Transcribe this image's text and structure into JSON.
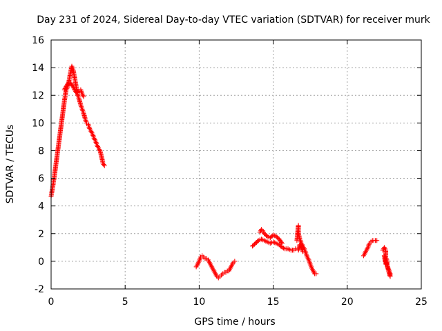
{
  "chart_data": {
    "type": "scatter",
    "title": "Day 231 of 2024, Sidereal Day-to-day VTEC variation (SDTVAR) for receiver murk",
    "xlabel": "GPS time / hours",
    "ylabel": "SDTVAR / TECUs",
    "xlim": [
      0,
      25
    ],
    "ylim": [
      -2,
      16
    ],
    "xticks": [
      0,
      5,
      10,
      15,
      20,
      25
    ],
    "yticks": [
      -2,
      0,
      2,
      4,
      6,
      8,
      10,
      12,
      14,
      16
    ],
    "grid": true,
    "marker": "plus",
    "color": "#ff0000",
    "series": [
      {
        "name": "SDTVAR",
        "segments": [
          [
            [
              0.0,
              4.7
            ],
            [
              0.1,
              5.3
            ],
            [
              0.2,
              6.0
            ],
            [
              0.3,
              6.8
            ],
            [
              0.4,
              7.6
            ],
            [
              0.5,
              8.4
            ],
            [
              0.6,
              9.2
            ],
            [
              0.7,
              10.0
            ],
            [
              0.8,
              10.8
            ],
            [
              0.9,
              11.6
            ],
            [
              1.0,
              12.3
            ],
            [
              1.1,
              12.6
            ],
            [
              1.2,
              13.0
            ],
            [
              1.3,
              13.6
            ],
            [
              1.4,
              14.1
            ],
            [
              1.5,
              13.8
            ],
            [
              1.6,
              13.2
            ],
            [
              1.7,
              12.6
            ],
            [
              1.8,
              12.0
            ],
            [
              1.9,
              11.7
            ],
            [
              2.0,
              11.3
            ],
            [
              2.1,
              11.0
            ],
            [
              2.2,
              10.7
            ],
            [
              2.3,
              10.3
            ],
            [
              2.4,
              10.0
            ],
            [
              2.5,
              9.9
            ],
            [
              2.6,
              9.6
            ],
            [
              2.7,
              9.4
            ],
            [
              2.8,
              9.2
            ],
            [
              2.9,
              8.9
            ],
            [
              3.0,
              8.7
            ],
            [
              3.1,
              8.4
            ],
            [
              3.2,
              8.2
            ],
            [
              3.3,
              8.0
            ],
            [
              3.4,
              7.6
            ],
            [
              3.5,
              7.1
            ],
            [
              3.6,
              6.9
            ]
          ],
          [
            [
              0.9,
              12.4
            ],
            [
              1.1,
              12.8
            ],
            [
              1.3,
              12.9
            ],
            [
              1.5,
              12.6
            ],
            [
              1.7,
              12.2
            ],
            [
              1.9,
              12.3
            ],
            [
              2.0,
              12.4
            ],
            [
              2.1,
              12.1
            ],
            [
              2.2,
              11.9
            ]
          ],
          [
            [
              9.8,
              -0.4
            ],
            [
              9.9,
              -0.2
            ],
            [
              10.0,
              0.0
            ],
            [
              10.1,
              0.3
            ],
            [
              10.2,
              0.4
            ],
            [
              10.3,
              0.3
            ],
            [
              10.4,
              0.2
            ],
            [
              10.5,
              0.2
            ],
            [
              10.6,
              0.1
            ],
            [
              10.7,
              -0.1
            ],
            [
              10.8,
              -0.3
            ],
            [
              10.9,
              -0.5
            ],
            [
              11.0,
              -0.7
            ],
            [
              11.1,
              -0.9
            ],
            [
              11.2,
              -1.1
            ],
            [
              11.3,
              -1.2
            ],
            [
              11.4,
              -1.1
            ],
            [
              11.5,
              -1.0
            ],
            [
              11.6,
              -0.9
            ],
            [
              11.7,
              -0.8
            ],
            [
              11.8,
              -0.8
            ],
            [
              11.9,
              -0.7
            ],
            [
              12.0,
              -0.7
            ],
            [
              12.1,
              -0.5
            ],
            [
              12.2,
              -0.3
            ],
            [
              12.3,
              -0.1
            ],
            [
              12.4,
              0.0
            ]
          ],
          [
            [
              13.6,
              1.1
            ],
            [
              13.8,
              1.3
            ],
            [
              14.0,
              1.5
            ],
            [
              14.2,
              1.6
            ],
            [
              14.4,
              1.5
            ],
            [
              14.6,
              1.4
            ],
            [
              14.8,
              1.3
            ],
            [
              15.0,
              1.4
            ],
            [
              15.2,
              1.3
            ],
            [
              15.4,
              1.2
            ],
            [
              15.6,
              1.0
            ],
            [
              15.8,
              0.9
            ],
            [
              16.0,
              0.9
            ],
            [
              16.2,
              0.8
            ],
            [
              16.4,
              0.8
            ],
            [
              16.5,
              0.9
            ]
          ],
          [
            [
              14.1,
              2.1
            ],
            [
              14.2,
              2.3
            ],
            [
              14.3,
              2.2
            ],
            [
              14.4,
              2.0
            ],
            [
              14.6,
              1.8
            ],
            [
              14.8,
              1.7
            ],
            [
              15.0,
              1.9
            ],
            [
              15.2,
              1.8
            ],
            [
              15.4,
              1.6
            ],
            [
              15.6,
              1.3
            ]
          ],
          [
            [
              16.6,
              1.5
            ],
            [
              16.7,
              2.6
            ],
            [
              16.7,
              2.0
            ],
            [
              16.8,
              1.6
            ],
            [
              16.9,
              1.3
            ],
            [
              17.0,
              1.1
            ],
            [
              17.1,
              0.9
            ],
            [
              17.2,
              0.6
            ],
            [
              17.3,
              0.3
            ],
            [
              17.4,
              0.1
            ],
            [
              17.5,
              -0.2
            ],
            [
              17.6,
              -0.5
            ],
            [
              17.7,
              -0.7
            ],
            [
              17.8,
              -0.9
            ],
            [
              17.9,
              -0.9
            ]
          ],
          [
            [
              16.7,
              0.8
            ],
            [
              16.8,
              1.2
            ],
            [
              16.9,
              1.0
            ],
            [
              17.0,
              0.7
            ]
          ],
          [
            [
              21.1,
              0.4
            ],
            [
              21.2,
              0.6
            ],
            [
              21.3,
              0.8
            ],
            [
              21.4,
              1.0
            ],
            [
              21.5,
              1.3
            ],
            [
              21.6,
              1.4
            ],
            [
              21.7,
              1.5
            ],
            [
              21.8,
              1.5
            ],
            [
              21.9,
              1.5
            ],
            [
              22.0,
              1.5
            ]
          ],
          [
            [
              22.4,
              0.8
            ],
            [
              22.5,
              1.0
            ],
            [
              22.6,
              0.8
            ],
            [
              22.6,
              0.3
            ],
            [
              22.7,
              0.0
            ],
            [
              22.7,
              -0.3
            ],
            [
              22.8,
              -0.6
            ],
            [
              22.9,
              -0.9
            ],
            [
              22.9,
              -1.1
            ],
            [
              22.5,
              0.4
            ],
            [
              22.6,
              -0.2
            ]
          ]
        ]
      }
    ]
  }
}
